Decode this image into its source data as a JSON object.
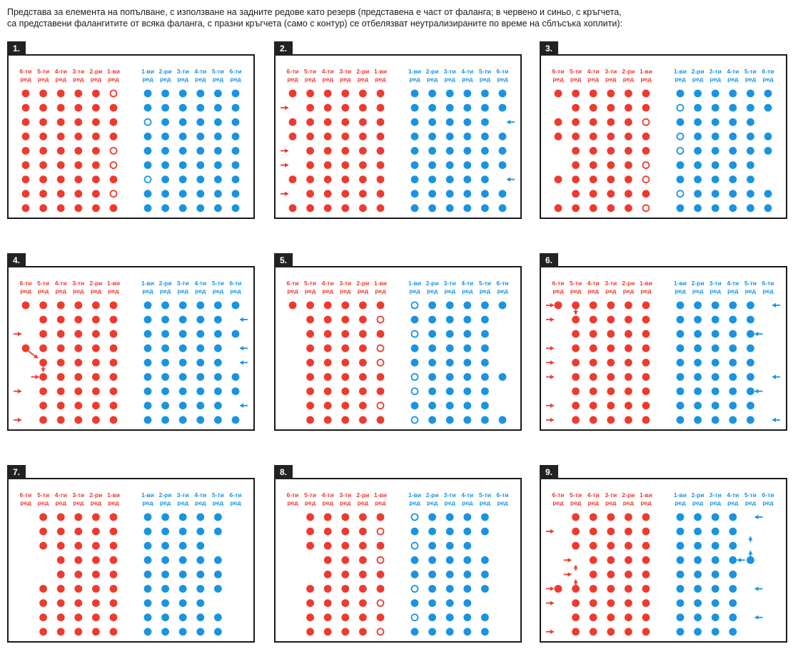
{
  "caption": {
    "line1": "Представа за елемента на попълване, с използване на задните редове като резерв (представена е част от фаланга; в червено и синьо, с кръгчета,",
    "line2": "са представени фалангитите от всяка фаланга, с празни кръгчета (само с контур) се отбелязват неутрализираните по време на сблъсъка хоплити):"
  },
  "colors": {
    "red": "#ee3a2f",
    "blue": "#1a93e0",
    "frame": "#1a1a1a"
  },
  "labels": {
    "red_top": [
      "6-ти",
      "5-ти",
      "4-ти",
      "3-ти",
      "2-ри",
      "1-ви"
    ],
    "blue_top": [
      "1-ви",
      "2-ри",
      "3-ти",
      "4-ти",
      "5-ти",
      "6-ти"
    ],
    "bottom": "ред"
  },
  "panels": [
    {
      "number": "1.",
      "red": [
        "FFFFFO",
        "FFFFFF",
        "FFFFFF",
        "FFFFFF",
        "FFFFFO",
        "FFFFFO",
        "FFFFFF",
        "FFFFFO",
        "FFFFFF",
        "FFFFFF"
      ],
      "blue": [
        "FFFFFF",
        "FFFFFF",
        "OFFFFF",
        "FFFFFF",
        "FFFFFF",
        "FFFFFF",
        "OFFFFF",
        "FFFFFF",
        "FFFFFF",
        "OFFFFF"
      ],
      "arrows": []
    },
    {
      "number": "2.",
      "red": [
        "FFFFFF",
        "-FFFFF",
        "FFFFFF",
        "FFFFFF",
        "-FFFFF",
        "-FFFFF",
        "FFFFFF",
        "-FFFFF",
        "FFFFFF",
        "FFFFFF"
      ],
      "blue": [
        "FFFFFF",
        "FFFFFF",
        "FFFFF-",
        "FFFFFF",
        "FFFFFF",
        "FFFFFF",
        "FFFFF-",
        "FFFFFF",
        "FFFFFF",
        "FFFFF-"
      ],
      "arrows": [
        {
          "side": "red",
          "col": 0,
          "row": 1,
          "dir": "right"
        },
        {
          "side": "red",
          "col": 0,
          "row": 4,
          "dir": "right"
        },
        {
          "side": "red",
          "col": 0,
          "row": 5,
          "dir": "right"
        },
        {
          "side": "red",
          "col": 0,
          "row": 7,
          "dir": "right"
        },
        {
          "side": "blue",
          "col": 5,
          "row": 2,
          "dir": "left"
        },
        {
          "side": "blue",
          "col": 5,
          "row": 6,
          "dir": "left"
        },
        {
          "side": "blue",
          "col": 5,
          "row": 9,
          "dir": "left"
        }
      ]
    },
    {
      "number": "3.",
      "red": [
        "FFFFFF",
        "-FFFFF",
        "FFFFFO",
        "FFFFFF",
        "-FFFFF",
        "-FFFFO",
        "FFFFFO",
        "-FFFFF",
        "FFFFFO",
        "-FFFFF"
      ],
      "blue": [
        "FFFFFF",
        "OFFFFF",
        "FFFFF-",
        "OFFFFF",
        "OFFFFF",
        "FFFFF-",
        "FFFFF-",
        "OFFFFF",
        "FFFFFF",
        "FFFFF-"
      ],
      "arrows": []
    },
    {
      "number": "4.",
      "red": [
        "FFFFFF",
        "-FFFFF",
        "-FFFFF",
        "FFFFFF",
        "-FFFFF",
        "-FFFFF",
        "-FFFFF",
        "-FFFFF",
        "-FFFFF",
        "FFFFFF"
      ],
      "blue": [
        "FFFFFF",
        "FFFFF-",
        "FFFFFF",
        "FFFFF-",
        "FFFFF-",
        "FFFFFF",
        "FFFFFF",
        "FFFFF-",
        "FFFFFF",
        "FFFFF-"
      ],
      "arrows": [
        {
          "side": "red",
          "col": 0,
          "row": 2,
          "dir": "right"
        },
        {
          "side": "red",
          "col": 0,
          "row": 6,
          "dir": "right"
        },
        {
          "side": "red",
          "col": 0,
          "row": 8,
          "dir": "right"
        },
        {
          "side": "red",
          "col": 1,
          "row": 5,
          "dir": "right"
        },
        {
          "side": "red",
          "col": 0,
          "row": 3,
          "dir": "down-right"
        },
        {
          "side": "red",
          "col": 1,
          "row": 4,
          "dir": "down"
        },
        {
          "side": "blue",
          "col": 5,
          "row": 1,
          "dir": "left"
        },
        {
          "side": "blue",
          "col": 5,
          "row": 3,
          "dir": "left"
        },
        {
          "side": "blue",
          "col": 5,
          "row": 4,
          "dir": "left"
        },
        {
          "side": "blue",
          "col": 5,
          "row": 7,
          "dir": "left"
        }
      ]
    },
    {
      "number": "5.",
      "red": [
        "FFFFFF",
        "-FFFFO",
        "-FFFFF",
        "-FFFFO",
        "-FFFFO",
        "-FFFFF",
        "-FFFFF",
        "-FFFFO",
        "-FFFFF",
        "FFFFFO"
      ],
      "blue": [
        "OFFFFF",
        "FFFFF-",
        "OFFFF-",
        "FFFFF-",
        "FFFFF-",
        "OFFFFF",
        "OFFFF-",
        "FFFFF-",
        "OFFFFF",
        "FFFFF-"
      ],
      "arrows": []
    },
    {
      "number": "6.",
      "red": [
        "FFFFFF",
        "-FFFFF",
        "-FFFFF",
        "-FFFFF",
        "-FFFFF",
        "-FFFFF",
        "-FFFFF",
        "-FFFFF",
        "-FFFFF",
        "-FFFFF"
      ],
      "blue": [
        "FFFFF-",
        "FFFFF-",
        "FFFFF-",
        "FFFFF-",
        "FFFFF-",
        "FFFFF-",
        "FFFFF-",
        "FFFFF-",
        "FFFFF-",
        "FFFFF-"
      ],
      "arrows": [
        {
          "side": "red",
          "col": 0,
          "row": 0,
          "dir": "right"
        },
        {
          "side": "red",
          "col": 1,
          "row": 0,
          "dir": "down"
        },
        {
          "side": "red",
          "col": 0,
          "row": 1,
          "dir": "right"
        },
        {
          "side": "red",
          "col": 0,
          "row": 3,
          "dir": "right"
        },
        {
          "side": "red",
          "col": 0,
          "row": 4,
          "dir": "right"
        },
        {
          "side": "red",
          "col": 0,
          "row": 5,
          "dir": "right"
        },
        {
          "side": "red",
          "col": 0,
          "row": 7,
          "dir": "right"
        },
        {
          "side": "red",
          "col": 0,
          "row": 8,
          "dir": "right"
        },
        {
          "side": "blue",
          "col": 5,
          "row": 0,
          "dir": "left"
        },
        {
          "side": "blue",
          "col": 4,
          "row": 2,
          "dir": "left"
        },
        {
          "side": "blue",
          "col": 5,
          "row": 5,
          "dir": "left"
        },
        {
          "side": "blue",
          "col": 4,
          "row": 6,
          "dir": "left"
        },
        {
          "side": "blue",
          "col": 5,
          "row": 8,
          "dir": "left"
        }
      ]
    },
    {
      "number": "7.",
      "red": [
        "-FFFFF",
        "-FFFFF",
        "-FFFFF",
        "--FFFF",
        "--FFFF",
        "-FFFFF",
        "-FFFFF",
        "-FFFFF",
        "-FFFFF",
        "-FFFFF"
      ],
      "blue": [
        "FFFFF-",
        "FFFFF-",
        "FFFF--",
        "FFFFF-",
        "FFFFF-",
        "FFFFF-",
        "FFFF--",
        "FFFFF-",
        "FFFFF-",
        "FFFFF-"
      ],
      "arrows": []
    },
    {
      "number": "8.",
      "red": [
        "-FFFFF",
        "-FFFFO",
        "-FFFFF",
        "--FFFO",
        "--FFFF",
        "-FFFFF",
        "-FFFFO",
        "-FFFFF",
        "-FFFFO",
        "-FFFFF"
      ],
      "blue": [
        "OFFFF-",
        "FFFFF-",
        "OFFF--",
        "FFFFF-",
        "FFFFF-",
        "OFFFF-",
        "FFFF--",
        "OFFFF-",
        "FFFFF-",
        "FFFFF-"
      ],
      "arrows": []
    },
    {
      "number": "9.",
      "red": [
        "-FFFFF",
        "-FFFFF",
        "-FFFFF",
        "--FFFF",
        "--FFFF",
        "FFFFFF",
        "-FFFFF",
        "-FFFFF",
        "-FFFFF",
        "-FFFFF"
      ],
      "blue": [
        "FFFF--",
        "FFFF--",
        "FFFF--",
        "FFFFF-",
        "FFFF--",
        "FFFF--",
        "FFFF--",
        "FFFF--",
        "FFFF--",
        "FFFF--"
      ],
      "arrows": [
        {
          "side": "red",
          "col": 0,
          "row": 1,
          "dir": "right"
        },
        {
          "side": "red",
          "col": 0,
          "row": 6,
          "dir": "right"
        },
        {
          "side": "red",
          "col": 0,
          "row": 8,
          "dir": "right"
        },
        {
          "side": "red",
          "col": 1,
          "row": 3,
          "dir": "right"
        },
        {
          "side": "red",
          "col": 1,
          "row": 4,
          "dir": "up"
        },
        {
          "side": "red",
          "col": 1,
          "row": 4,
          "dir": "right"
        },
        {
          "side": "red",
          "col": 0,
          "row": 5,
          "dir": "right"
        },
        {
          "side": "red",
          "col": 1,
          "row": 5,
          "dir": "up"
        },
        {
          "side": "blue",
          "col": 4,
          "row": 0,
          "dir": "left"
        },
        {
          "side": "blue",
          "col": 4,
          "row": 2,
          "dir": "up"
        },
        {
          "side": "blue",
          "col": 3,
          "row": 3,
          "dir": "left"
        },
        {
          "side": "blue",
          "col": 4,
          "row": 3,
          "dir": "up"
        },
        {
          "side": "blue",
          "col": 4,
          "row": 5,
          "dir": "left"
        },
        {
          "side": "blue",
          "col": 4,
          "row": 7,
          "dir": "left"
        }
      ]
    }
  ]
}
